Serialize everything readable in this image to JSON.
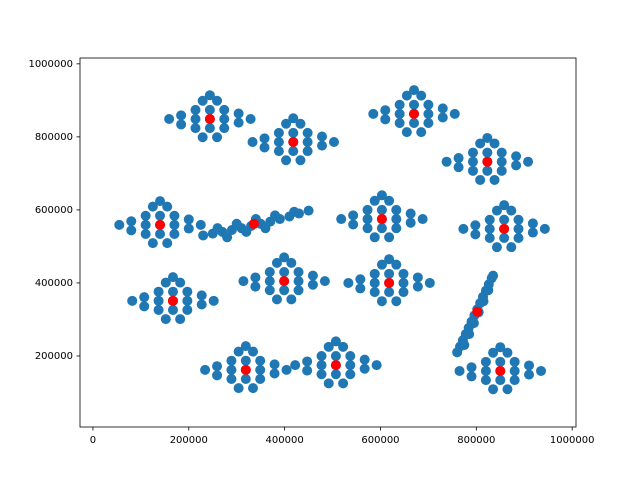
{
  "chart_data": {
    "type": "scatter",
    "xlim": [
      -27000,
      1008000
    ],
    "ylim": [
      5500,
      1016000
    ],
    "xticks": [
      0,
      200000,
      400000,
      600000,
      800000,
      1000000
    ],
    "yticks": [
      200000,
      400000,
      600000,
      800000,
      1000000
    ],
    "series": [
      {
        "color": "#1f77b4",
        "x": [
          244000,
          214000,
          274000,
          244000,
          244000,
          214000,
          274000,
          214000,
          274000,
          184000,
          304000,
          184000,
          304000,
          229000,
          259000,
          259000,
          229000,
          159000,
          329000,
          244000,
          418000,
          388000,
          448000,
          418000,
          418000,
          388000,
          448000,
          388000,
          448000,
          358000,
          478000,
          358000,
          478000,
          403000,
          433000,
          433000,
          403000,
          333000,
          503000,
          418000,
          670000,
          640000,
          700000,
          670000,
          670000,
          640000,
          700000,
          640000,
          700000,
          610000,
          730000,
          610000,
          730000,
          655000,
          685000,
          685000,
          655000,
          585000,
          755000,
          670000,
          823000,
          793000,
          853000,
          823000,
          823000,
          793000,
          853000,
          793000,
          853000,
          763000,
          883000,
          763000,
          883000,
          808000,
          838000,
          838000,
          808000,
          738000,
          908000,
          823000,
          140000,
          110000,
          170000,
          140000,
          140000,
          110000,
          170000,
          110000,
          170000,
          80000,
          200000,
          80000,
          200000,
          125000,
          155000,
          155000,
          125000,
          55000,
          225000,
          140000,
          230000,
          250000,
          270000,
          290000,
          310000,
          330000,
          350000,
          370000,
          390000,
          410000,
          430000,
          450000,
          260000,
          300000,
          340000,
          380000,
          420000,
          320000,
          360000,
          280000,
          603000,
          573000,
          633000,
          603000,
          603000,
          573000,
          633000,
          573000,
          633000,
          543000,
          663000,
          543000,
          663000,
          588000,
          618000,
          618000,
          588000,
          518000,
          688000,
          603000,
          858000,
          828000,
          888000,
          858000,
          858000,
          828000,
          888000,
          828000,
          888000,
          798000,
          918000,
          798000,
          918000,
          843000,
          873000,
          873000,
          843000,
          773000,
          943000,
          858000,
          399000,
          369000,
          429000,
          399000,
          399000,
          369000,
          429000,
          369000,
          429000,
          339000,
          459000,
          339000,
          459000,
          384000,
          414000,
          414000,
          384000,
          314000,
          484000,
          399000,
          618000,
          588000,
          648000,
          618000,
          618000,
          588000,
          648000,
          588000,
          648000,
          558000,
          678000,
          558000,
          678000,
          603000,
          633000,
          633000,
          603000,
          533000,
          703000,
          618000,
          167000,
          137000,
          197000,
          167000,
          167000,
          137000,
          197000,
          137000,
          197000,
          107000,
          227000,
          107000,
          227000,
          152000,
          182000,
          182000,
          152000,
          82000,
          252000,
          167000,
          760000,
          766000,
          772000,
          778000,
          784000,
          790000,
          796000,
          802000,
          808000,
          814000,
          820000,
          826000,
          832000,
          835000,
          775000,
          785000,
          795000,
          805000,
          815000,
          825000,
          319000,
          289000,
          349000,
          319000,
          319000,
          289000,
          349000,
          289000,
          349000,
          259000,
          379000,
          259000,
          379000,
          304000,
          334000,
          334000,
          304000,
          234000,
          404000,
          319000,
          507000,
          477000,
          537000,
          507000,
          507000,
          477000,
          537000,
          477000,
          537000,
          447000,
          567000,
          447000,
          567000,
          492000,
          522000,
          522000,
          492000,
          422000,
          592000,
          507000,
          850000,
          820000,
          880000,
          850000,
          850000,
          820000,
          880000,
          820000,
          880000,
          790000,
          910000,
          790000,
          910000,
          835000,
          865000,
          865000,
          835000,
          765000,
          935000,
          850000
        ],
        "values": [
          849000,
          849000,
          849000,
          874000,
          824000,
          874000,
          874000,
          824000,
          824000,
          859000,
          839000,
          834000,
          864000,
          899000,
          799000,
          899000,
          799000,
          849000,
          849000,
          914000,
          786000,
          786000,
          786000,
          811000,
          761000,
          811000,
          811000,
          761000,
          761000,
          796000,
          776000,
          771000,
          801000,
          836000,
          736000,
          836000,
          736000,
          786000,
          786000,
          851000,
          863000,
          863000,
          863000,
          888000,
          838000,
          888000,
          888000,
          838000,
          838000,
          873000,
          853000,
          848000,
          878000,
          913000,
          813000,
          913000,
          813000,
          863000,
          863000,
          928000,
          732000,
          732000,
          732000,
          757000,
          707000,
          757000,
          757000,
          707000,
          707000,
          742000,
          722000,
          717000,
          747000,
          782000,
          682000,
          782000,
          682000,
          732000,
          732000,
          797000,
          559000,
          559000,
          559000,
          584000,
          534000,
          584000,
          584000,
          534000,
          534000,
          569000,
          549000,
          544000,
          574000,
          609000,
          509000,
          609000,
          509000,
          559000,
          559000,
          624000,
          530000,
          535000,
          540000,
          545000,
          550000,
          556000,
          562000,
          568000,
          575000,
          582000,
          590000,
          598000,
          550000,
          562000,
          575000,
          585000,
          595000,
          540000,
          550000,
          525000,
          575000,
          575000,
          575000,
          600000,
          550000,
          600000,
          600000,
          550000,
          550000,
          585000,
          565000,
          560000,
          590000,
          625000,
          525000,
          625000,
          525000,
          575000,
          575000,
          640000,
          548000,
          548000,
          548000,
          573000,
          523000,
          573000,
          573000,
          523000,
          523000,
          558000,
          538000,
          533000,
          563000,
          598000,
          498000,
          598000,
          498000,
          548000,
          548000,
          613000,
          405000,
          405000,
          405000,
          430000,
          380000,
          430000,
          430000,
          380000,
          380000,
          415000,
          395000,
          390000,
          420000,
          455000,
          355000,
          455000,
          355000,
          405000,
          405000,
          470000,
          400000,
          400000,
          400000,
          425000,
          375000,
          425000,
          425000,
          375000,
          375000,
          410000,
          390000,
          385000,
          415000,
          450000,
          350000,
          450000,
          350000,
          400000,
          400000,
          465000,
          351000,
          351000,
          351000,
          376000,
          326000,
          376000,
          376000,
          326000,
          326000,
          361000,
          341000,
          336000,
          366000,
          401000,
          301000,
          401000,
          301000,
          351000,
          351000,
          416000,
          210000,
          226000,
          243000,
          260000,
          277000,
          294000,
          311000,
          328000,
          345000,
          362000,
          379000,
          396000,
          413000,
          420000,
          230000,
          260000,
          290000,
          320000,
          350000,
          380000,
          162000,
          162000,
          162000,
          187000,
          137000,
          187000,
          187000,
          137000,
          137000,
          172000,
          152000,
          147000,
          177000,
          212000,
          112000,
          212000,
          112000,
          162000,
          162000,
          227000,
          175000,
          175000,
          175000,
          200000,
          150000,
          200000,
          200000,
          150000,
          150000,
          185000,
          165000,
          160000,
          190000,
          225000,
          125000,
          225000,
          125000,
          175000,
          175000,
          240000,
          159000,
          159000,
          159000,
          184000,
          134000,
          184000,
          184000,
          134000,
          134000,
          169000,
          149000,
          144000,
          174000,
          209000,
          109000,
          209000,
          109000,
          159000,
          159000,
          224000
        ]
      },
      {
        "color": "#ff0000",
        "x": [
          244000,
          418000,
          670000,
          823000,
          140000,
          336000,
          603000,
          858000,
          399000,
          618000,
          167000,
          802000,
          319000,
          507000,
          850000
        ],
        "values": [
          849000,
          786000,
          863000,
          732000,
          559000,
          562000,
          575000,
          548000,
          405000,
          400000,
          351000,
          321000,
          162000,
          175000,
          159000
        ]
      }
    ]
  }
}
